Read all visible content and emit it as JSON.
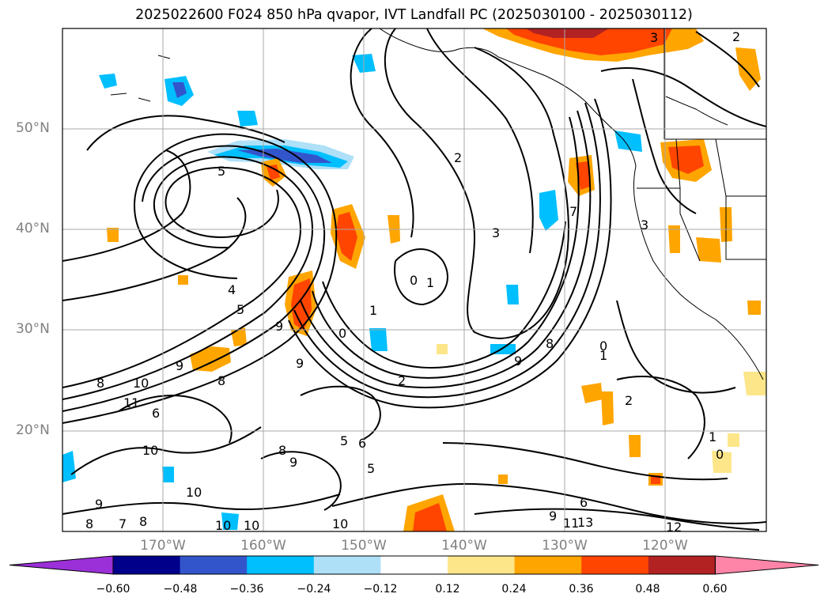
{
  "title": "2025022600 F024 850 hPa qvapor, IVT Landfall PC (2025030100 - 2025030112)",
  "map": {
    "lat_labels": [
      "50°N",
      "40°N",
      "30°N",
      "20°N"
    ],
    "lon_labels": [
      "170°W",
      "160°W",
      "150°W",
      "140°W",
      "130°W",
      "120°W"
    ],
    "extent": {
      "lon": [
        -180,
        -110
      ],
      "lat": [
        10,
        60
      ]
    },
    "contour_labels": [
      "2",
      "3",
      "5",
      "2",
      "3",
      "3",
      "4",
      "5",
      "9",
      "0",
      "1",
      "0",
      "1",
      "9",
      "2",
      "8",
      "10",
      "11",
      "9",
      "8",
      "6",
      "10",
      "5",
      "6",
      "8",
      "9",
      "5",
      "10",
      "9",
      "8",
      "7",
      "8",
      "10",
      "10",
      "10",
      "9",
      "6",
      "11",
      "12",
      "13",
      "1",
      "0",
      "2",
      "0",
      "1",
      "7",
      "8",
      "9"
    ]
  },
  "colorbar": {
    "ticks": [
      "−0.60",
      "−0.48",
      "−0.36",
      "−0.24",
      "−0.12",
      "0.12",
      "0.24",
      "0.36",
      "0.48",
      "0.60"
    ],
    "colors": [
      "#9b30d9",
      "#00008b",
      "#3355cc",
      "#00bfff",
      "#aee0f8",
      "#ffffff",
      "#fde68a",
      "#ffa500",
      "#ff4500",
      "#b22222",
      "#ff85a8"
    ]
  }
}
